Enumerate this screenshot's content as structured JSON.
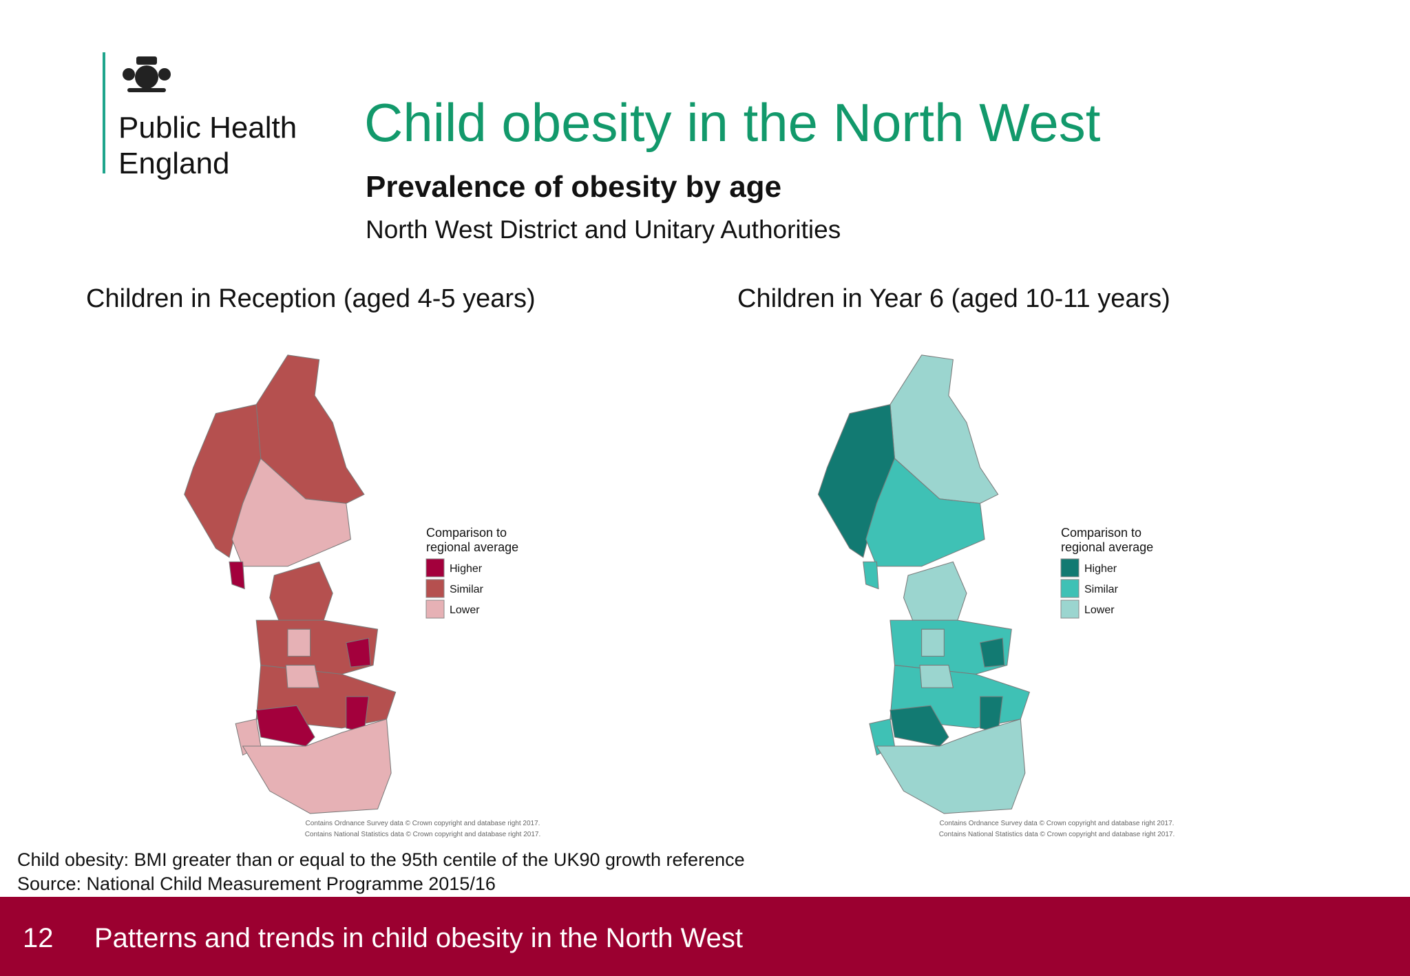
{
  "logo": {
    "line1": "Public Health",
    "line2": "England"
  },
  "header": {
    "title": "Child obesity in the North West",
    "subtitle": "Prevalence of obesity by age",
    "description": "North West District and Unitary Authorities"
  },
  "maps": [
    {
      "title": "Children in Reception (aged 4-5 years)",
      "legend": {
        "title1": "Comparison to",
        "title2": "regional average",
        "items": [
          {
            "label": "Higher",
            "color": "#a3003c"
          },
          {
            "label": "Similar",
            "color": "#b5504f"
          },
          {
            "label": "Lower",
            "color": "#e6b1b5"
          }
        ]
      },
      "credits": [
        "Contains Ordnance Survey data © Crown copyright and database right 2017.",
        "Contains National Statistics data © Crown copyright and database right 2017."
      ]
    },
    {
      "title": "Children in Year 6 (aged 10-11 years)",
      "legend": {
        "title1": "Comparison to",
        "title2": "regional average",
        "items": [
          {
            "label": "Higher",
            "color": "#127a72"
          },
          {
            "label": "Similar",
            "color": "#3fc1b5"
          },
          {
            "label": "Lower",
            "color": "#9bd5cf"
          }
        ]
      },
      "credits": [
        "Contains Ordnance Survey data © Crown copyright and database right 2017.",
        "Contains National Statistics data © Crown copyright and database right 2017."
      ]
    }
  ],
  "notes": [
    "Child obesity: BMI greater than or equal to the 95th centile of the UK90 growth reference",
    "Source: National Child Measurement Programme 2015/16"
  ],
  "footer": {
    "page": "12",
    "text": "Patterns and trends in child obesity in the North West"
  }
}
